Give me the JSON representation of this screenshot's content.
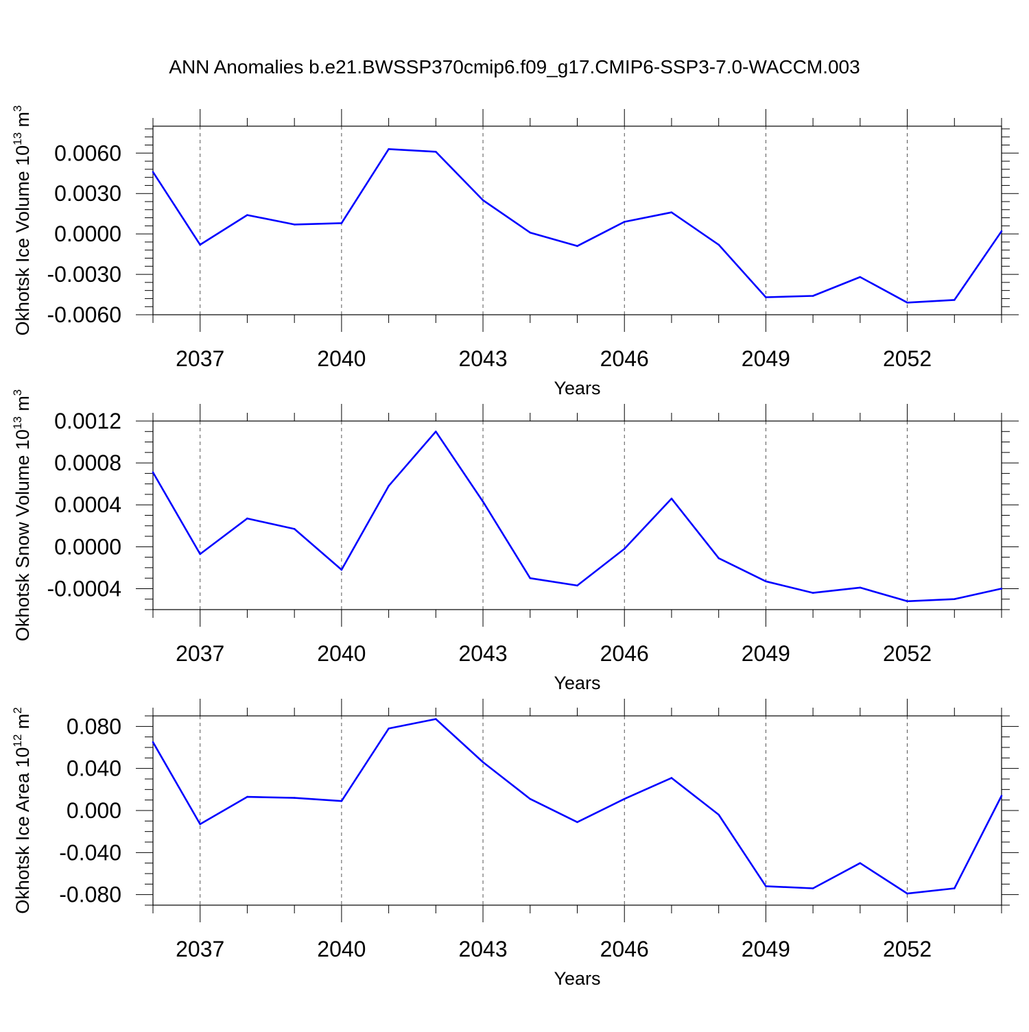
{
  "title": "ANN Anomalies b.e21.BWSSP370cmip6.f09_g17.CMIP6-SSP3-7.0-WACCM.003",
  "line_color": "#0000ff",
  "chart_data": [
    {
      "type": "line",
      "ylabel_main": "Okhotsk Ice Volume 10",
      "ylabel_sup": "13",
      "ylabel_unit": " m",
      "ylabel_unit_sup": "3",
      "xlabel": "Years",
      "xlim": [
        2036,
        2054
      ],
      "ylim": [
        -0.006,
        0.008
      ],
      "ytick_values": [
        -0.006,
        -0.003,
        0.0,
        0.003,
        0.006
      ],
      "ytick_labels": [
        "-0.0060",
        "-0.0030",
        "0.0000",
        "0.0030",
        "0.0060"
      ],
      "ytick_minor_step": 0.0006,
      "xtick_values": [
        2037,
        2040,
        2043,
        2046,
        2049,
        2052
      ],
      "xtick_labels": [
        "2037",
        "2040",
        "2043",
        "2046",
        "2049",
        "2052"
      ],
      "grid": "vertical dashed at labeled years",
      "series": [
        {
          "x": [
            2036,
            2037,
            2038,
            2039,
            2040,
            2041,
            2042,
            2043,
            2044,
            2045,
            2046,
            2047,
            2048,
            2049,
            2050,
            2051,
            2052,
            2053,
            2054
          ],
          "values": [
            0.0046,
            -0.0008,
            0.0014,
            0.0007,
            0.0008,
            0.0063,
            0.0061,
            0.0025,
            0.0001,
            -0.0009,
            0.0009,
            0.0016,
            -0.0008,
            -0.0047,
            -0.0046,
            -0.0032,
            -0.0051,
            -0.0049,
            0.0002
          ]
        }
      ]
    },
    {
      "type": "line",
      "ylabel_main": "Okhotsk Snow Volume 10",
      "ylabel_sup": "13",
      "ylabel_unit": " m",
      "ylabel_unit_sup": "3",
      "xlabel": "Years",
      "xlim": [
        2036,
        2054
      ],
      "ylim": [
        -0.0006,
        0.0012
      ],
      "ytick_values": [
        -0.0004,
        0.0,
        0.0004,
        0.0008,
        0.0012
      ],
      "ytick_labels": [
        "-0.0004",
        "0.0000",
        "0.0004",
        "0.0008",
        "0.0012"
      ],
      "ytick_minor_step": 0.0001,
      "xtick_values": [
        2037,
        2040,
        2043,
        2046,
        2049,
        2052
      ],
      "xtick_labels": [
        "2037",
        "2040",
        "2043",
        "2046",
        "2049",
        "2052"
      ],
      "grid": "vertical dashed at labeled years",
      "series": [
        {
          "x": [
            2036,
            2037,
            2038,
            2039,
            2040,
            2041,
            2042,
            2043,
            2044,
            2045,
            2046,
            2047,
            2048,
            2049,
            2050,
            2051,
            2052,
            2053,
            2054
          ],
          "values": [
            0.00071,
            -7e-05,
            0.00027,
            0.00017,
            -0.00022,
            0.00058,
            0.0011,
            0.00043,
            -0.0003,
            -0.00037,
            -2e-05,
            0.00046,
            -0.00011,
            -0.00033,
            -0.00044,
            -0.00039,
            -0.00052,
            -0.0005,
            -0.0004
          ]
        }
      ]
    },
    {
      "type": "line",
      "ylabel_main": "Okhotsk Ice Area 10",
      "ylabel_sup": "12",
      "ylabel_unit": " m",
      "ylabel_unit_sup": "2",
      "xlabel": "Years",
      "xlim": [
        2036,
        2054
      ],
      "ylim": [
        -0.09,
        0.09
      ],
      "ytick_values": [
        -0.08,
        -0.04,
        0.0,
        0.04,
        0.08
      ],
      "ytick_labels": [
        "-0.080",
        "-0.040",
        "0.000",
        "0.040",
        "0.080"
      ],
      "ytick_minor_step": 0.01,
      "xtick_values": [
        2037,
        2040,
        2043,
        2046,
        2049,
        2052
      ],
      "xtick_labels": [
        "2037",
        "2040",
        "2043",
        "2046",
        "2049",
        "2052"
      ],
      "grid": "vertical dashed at labeled years",
      "series": [
        {
          "x": [
            2036,
            2037,
            2038,
            2039,
            2040,
            2041,
            2042,
            2043,
            2044,
            2045,
            2046,
            2047,
            2048,
            2049,
            2050,
            2051,
            2052,
            2053,
            2054
          ],
          "values": [
            0.065,
            -0.013,
            0.013,
            0.012,
            0.009,
            0.078,
            0.087,
            0.046,
            0.011,
            -0.011,
            0.011,
            0.031,
            -0.004,
            -0.072,
            -0.074,
            -0.05,
            -0.079,
            -0.074,
            0.014
          ]
        }
      ]
    }
  ]
}
